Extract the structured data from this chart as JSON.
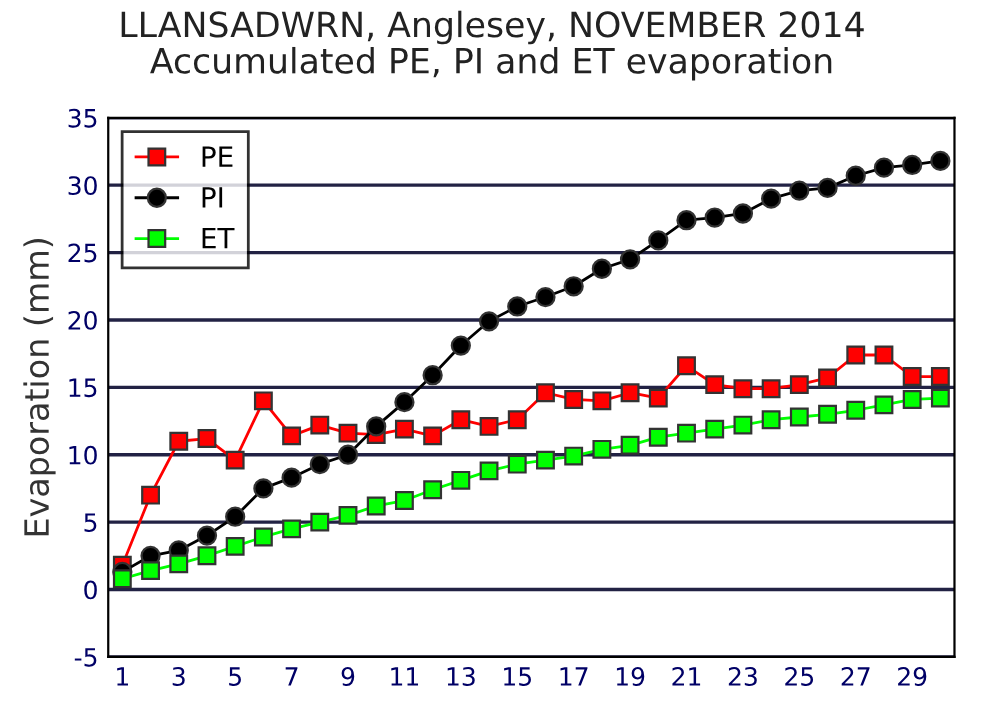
{
  "chart_data": {
    "type": "line",
    "title": "LLANSADWRN, Anglesey, NOVEMBER 2014\nAccumulated PE, PI and ET evaporation",
    "ylabel": "Evaporation (mm)",
    "categories": [
      "1",
      null,
      "3",
      null,
      "5",
      null,
      "7",
      null,
      "9",
      null,
      "11",
      null,
      "13",
      null,
      "15",
      null,
      "17",
      null,
      "19",
      null,
      "21",
      null,
      "23",
      null,
      "25",
      null,
      "27",
      null,
      "29",
      null
    ],
    "series": [
      {
        "name": "PE",
        "color": "#ff0000",
        "marker": "square",
        "values": [
          1.8,
          7.0,
          11.0,
          11.2,
          9.6,
          14.0,
          11.4,
          12.2,
          11.6,
          11.5,
          11.9,
          11.4,
          12.6,
          12.1,
          12.6,
          14.6,
          14.1,
          14.0,
          14.6,
          14.2,
          16.6,
          15.2,
          14.9,
          14.9,
          15.2,
          15.7,
          17.4,
          17.4,
          15.8,
          15.8
        ]
      },
      {
        "name": "PI",
        "color": "#000000",
        "marker": "circle",
        "values": [
          1.3,
          2.5,
          2.9,
          4.0,
          5.4,
          7.5,
          8.3,
          9.3,
          10.0,
          12.1,
          13.9,
          15.9,
          18.1,
          19.9,
          21.0,
          21.7,
          22.5,
          23.8,
          24.5,
          25.9,
          27.4,
          27.6,
          27.9,
          29.0,
          29.6,
          29.8,
          30.7,
          31.3,
          31.5,
          31.8
        ]
      },
      {
        "name": "ET",
        "color": "#00ff00",
        "marker": "square",
        "values": [
          0.8,
          1.4,
          1.9,
          2.5,
          3.2,
          3.9,
          4.5,
          5.0,
          5.5,
          6.2,
          6.6,
          7.4,
          8.1,
          8.8,
          9.3,
          9.6,
          9.9,
          10.4,
          10.7,
          11.3,
          11.6,
          11.9,
          12.2,
          12.6,
          12.8,
          13.0,
          13.3,
          13.7,
          14.1,
          14.2
        ]
      }
    ],
    "ylim": [
      -5,
      35
    ],
    "yticks": [
      -5,
      0,
      5,
      10,
      15,
      20,
      25,
      30,
      35
    ],
    "grid": "y",
    "legend": "top left",
    "line_style": "solid"
  }
}
